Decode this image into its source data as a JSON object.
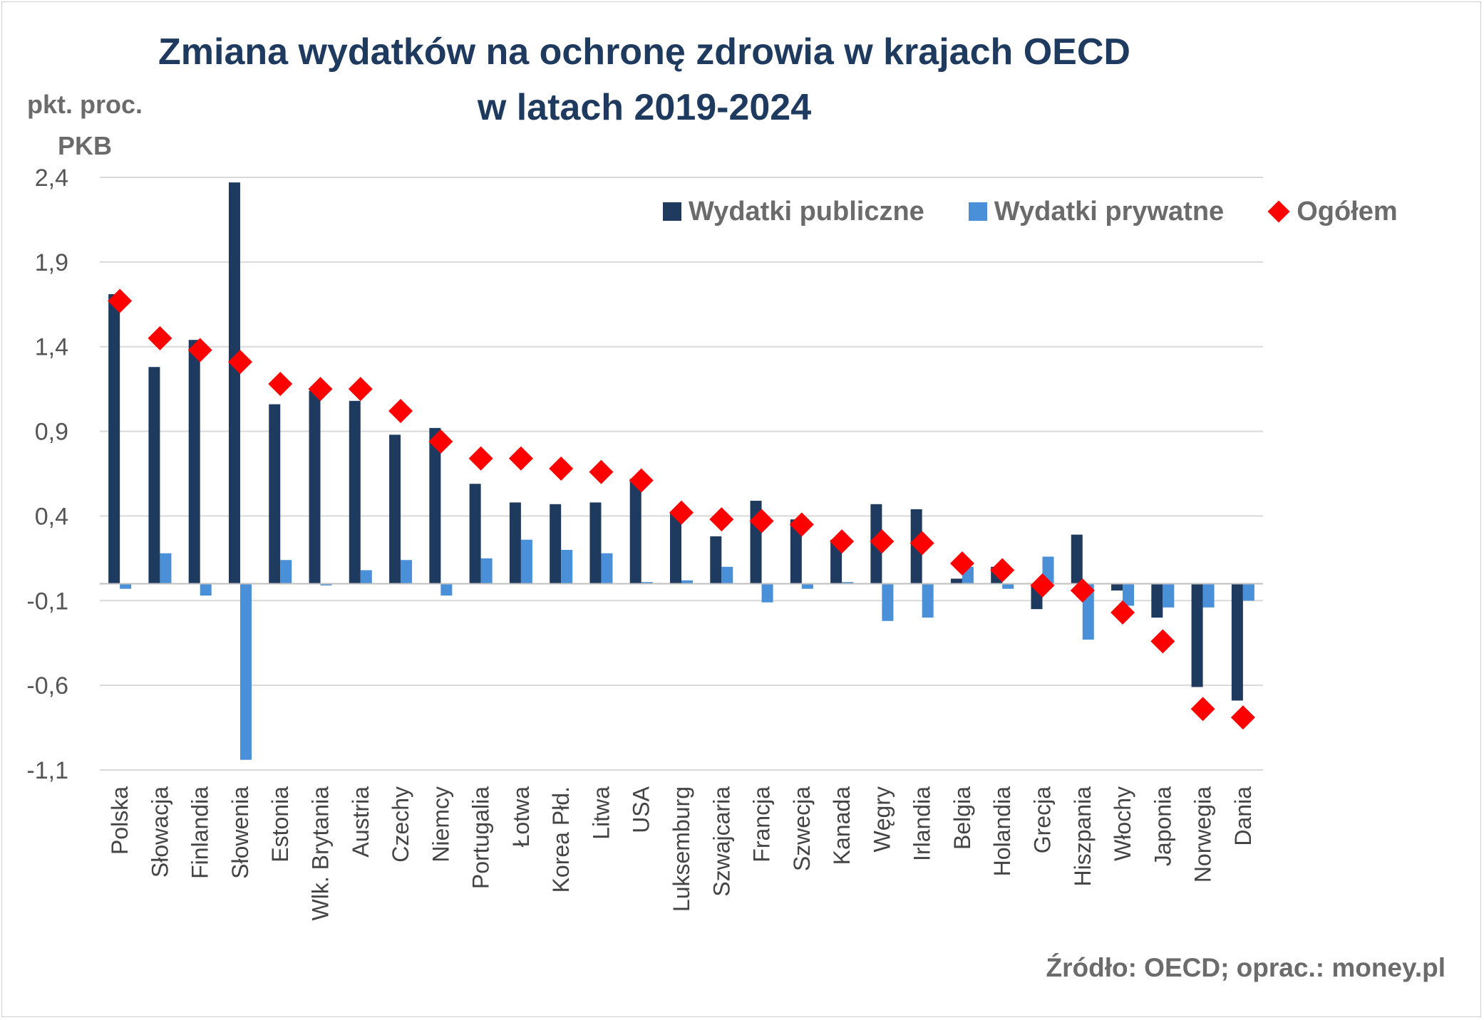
{
  "chart_data": {
    "type": "bar",
    "title_line1": "Zmiana wydatków na ochronę zdrowia w krajach OECD",
    "title_line2": "w latach 2019-2024",
    "ylabel_line1": "pkt. proc.",
    "ylabel_line2": "PKB",
    "source": "Źródło: OECD; oprac.: money.pl",
    "ylim": [
      -1.1,
      2.4
    ],
    "yticks": [
      "2,4",
      "1,9",
      "1,4",
      "0,9",
      "0,4",
      "-0,1",
      "-0,6",
      "-1,1"
    ],
    "ytick_values": [
      2.4,
      1.9,
      1.4,
      0.9,
      0.4,
      -0.1,
      -0.6,
      -1.1
    ],
    "grid": true,
    "legend_position": "top-right",
    "categories": [
      "Polska",
      "Słowacja",
      "Finlandia",
      "Słowenia",
      "Estonia",
      "Wlk. Brytania",
      "Austria",
      "Czechy",
      "Niemcy",
      "Portugalia",
      "Łotwa",
      "Korea Płd.",
      "Litwa",
      "USA",
      "Luksemburg",
      "Szwajcaria",
      "Francja",
      "Szwecja",
      "Kanada",
      "Węgry",
      "Irlandia",
      "Belgia",
      "Holandia",
      "Grecja",
      "Hiszpania",
      "Włochy",
      "Japonia",
      "Norwegia",
      "Dania"
    ],
    "series": [
      {
        "name": "Wydatki publiczne",
        "type": "bar",
        "color": "#1f3a5f",
        "values": [
          1.71,
          1.28,
          1.44,
          2.37,
          1.06,
          1.14,
          1.08,
          0.88,
          0.92,
          0.59,
          0.48,
          0.47,
          0.48,
          0.62,
          0.42,
          0.28,
          0.49,
          0.38,
          0.26,
          0.47,
          0.44,
          0.03,
          0.1,
          -0.15,
          0.29,
          -0.04,
          -0.2,
          -0.61,
          -0.69
        ]
      },
      {
        "name": "Wydatki prywatne",
        "type": "bar",
        "color": "#4a90d9",
        "values": [
          -0.03,
          0.18,
          -0.07,
          -1.04,
          0.14,
          -0.01,
          0.08,
          0.14,
          -0.07,
          0.15,
          0.26,
          0.2,
          0.18,
          0.01,
          0.02,
          0.1,
          -0.11,
          -0.03,
          0.01,
          -0.22,
          -0.2,
          0.1,
          -0.03,
          0.16,
          -0.33,
          -0.13,
          -0.14,
          -0.14,
          -0.1
        ]
      },
      {
        "name": "Ogółem",
        "type": "marker",
        "color": "#ff0000",
        "values": [
          1.67,
          1.45,
          1.38,
          1.31,
          1.18,
          1.15,
          1.15,
          1.02,
          0.84,
          0.74,
          0.74,
          0.68,
          0.66,
          0.61,
          0.42,
          0.38,
          0.37,
          0.35,
          0.25,
          0.25,
          0.24,
          0.12,
          0.08,
          -0.01,
          -0.04,
          -0.17,
          -0.34,
          -0.74,
          -0.79
        ]
      }
    ]
  }
}
